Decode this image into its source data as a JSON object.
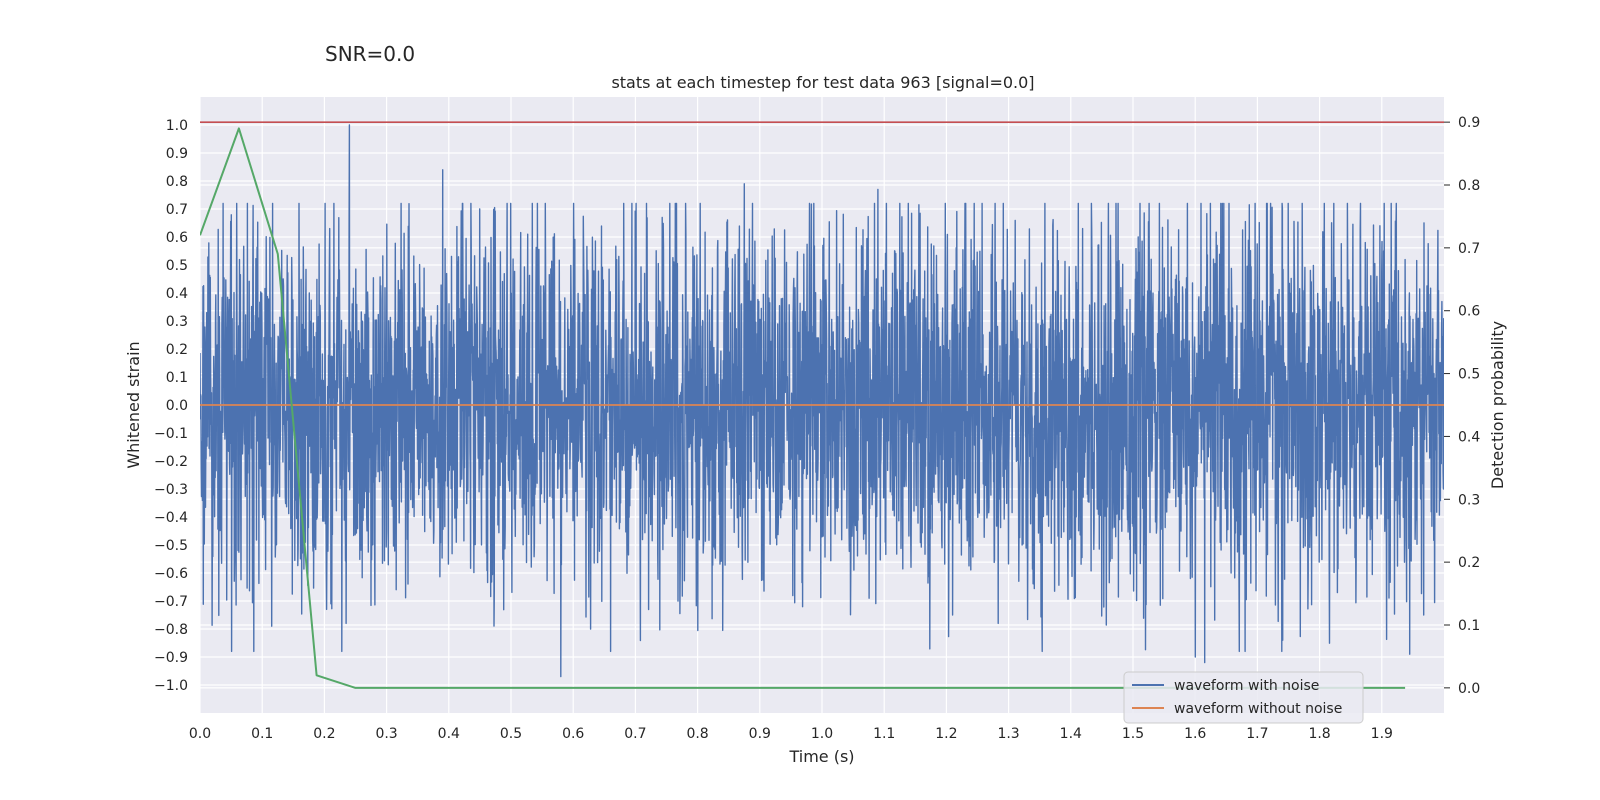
{
  "suptitle": "SNR=0.0",
  "colors": {
    "background": "#eaeaf2",
    "grid": "#ffffff",
    "noisy": "#4c72b0",
    "clean": "#dd8452",
    "prob": "#55a868",
    "threshold": "#c44e52"
  },
  "chart_data": {
    "type": "line",
    "title": "stats at each timestep for test data 963 [signal=0.0]",
    "xlabel": "Time (s)",
    "ylabel": "Whitened strain",
    "ylabel_right": "Detection probability",
    "xlim": [
      0.0,
      2.0
    ],
    "ylim": [
      -1.1,
      1.1
    ],
    "ylim_right": [
      -0.04,
      0.94
    ],
    "x_ticks": [
      0.0,
      0.1,
      0.2,
      0.3,
      0.4,
      0.5,
      0.6,
      0.7,
      0.8,
      0.9,
      1.0,
      1.1,
      1.2,
      1.3,
      1.4,
      1.5,
      1.6,
      1.7,
      1.8,
      1.9
    ],
    "x_tick_labels": [
      "0.0",
      "0.1",
      "0.2",
      "0.3",
      "0.4",
      "0.5",
      "0.6",
      "0.7",
      "0.8",
      "0.9",
      "1.0",
      "1.1",
      "1.2",
      "1.3",
      "1.4",
      "1.5",
      "1.6",
      "1.7",
      "1.8",
      "1.9"
    ],
    "y_ticks": [
      1.0,
      0.9,
      0.8,
      0.7,
      0.6,
      0.5,
      0.4,
      0.3,
      0.2,
      0.1,
      0.0,
      -0.1,
      -0.2,
      -0.3,
      -0.4,
      -0.5,
      -0.6,
      -0.7,
      -0.8,
      -0.9,
      -1.0
    ],
    "y_tick_labels": [
      "1.0",
      "0.9",
      "0.8",
      "0.7",
      "0.6",
      "0.5",
      "0.4",
      "0.3",
      "0.2",
      "0.1",
      "0.0",
      "−0.1",
      "−0.2",
      "−0.3",
      "−0.4",
      "−0.5",
      "−0.6",
      "−0.7",
      "−0.8",
      "−0.9",
      "−1.0"
    ],
    "y_right_ticks": [
      0.9,
      0.8,
      0.7,
      0.6,
      0.5,
      0.4,
      0.3,
      0.2,
      0.1,
      0.0
    ],
    "y_right_tick_labels": [
      "0.9",
      "0.8",
      "0.7",
      "0.6",
      "0.5",
      "0.4",
      "0.3",
      "0.2",
      "0.1",
      "0.0"
    ],
    "series": [
      {
        "name": "waveform with noise",
        "axis": "left",
        "kind": "noise",
        "n_samples": 4096,
        "amplitude_std": 0.33,
        "peak_points": [
          [
            0.24,
            1.0
          ],
          [
            0.39,
            0.84
          ],
          [
            0.875,
            0.79
          ],
          [
            1.09,
            0.77
          ],
          [
            0.58,
            -0.97
          ],
          [
            1.615,
            -0.92
          ],
          [
            1.6,
            -0.9
          ],
          [
            1.945,
            -0.89
          ],
          [
            0.115,
            -0.79
          ],
          [
            0.235,
            -0.78
          ]
        ]
      },
      {
        "name": "waveform without noise",
        "axis": "left",
        "x": [
          0.0,
          2.0
        ],
        "y": [
          0.0,
          0.0
        ]
      },
      {
        "name": "detection probability",
        "axis": "right",
        "x": [
          0.0,
          0.0625,
          0.125,
          0.1875,
          0.25,
          1.9375
        ],
        "y": [
          0.72,
          0.89,
          0.69,
          0.02,
          0.0,
          0.0
        ]
      },
      {
        "name": "threshold",
        "axis": "right",
        "x": [
          0.0,
          2.0
        ],
        "y": [
          0.9,
          0.9
        ]
      }
    ],
    "grid": true,
    "legend": {
      "position": "lower-right",
      "entries": [
        "waveform with noise",
        "waveform without noise"
      ]
    }
  }
}
